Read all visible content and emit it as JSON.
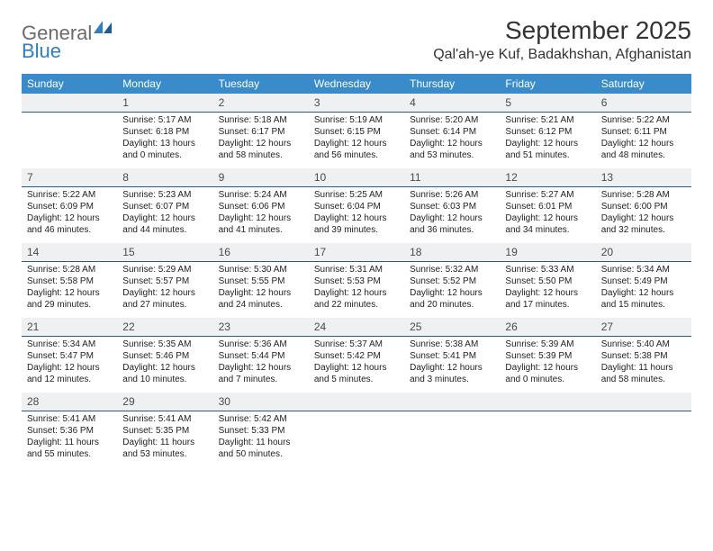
{
  "logo": {
    "part1": "General",
    "part2": "Blue"
  },
  "title": "September 2025",
  "location": "Qal'ah-ye Kuf, Badakhshan, Afghanistan",
  "colors": {
    "header_bg": "#3a8bc9",
    "header_text": "#ffffff",
    "dayrow_bg": "#eef0f1",
    "dayrow_border": "#2b5a7e",
    "logo_gray": "#6b6b6b",
    "logo_blue": "#2f7fbe"
  },
  "weekdays": [
    "Sunday",
    "Monday",
    "Tuesday",
    "Wednesday",
    "Thursday",
    "Friday",
    "Saturday"
  ],
  "weeks": [
    [
      {
        "day": "",
        "sunrise": "",
        "sunset": "",
        "daylight": ""
      },
      {
        "day": "1",
        "sunrise": "Sunrise: 5:17 AM",
        "sunset": "Sunset: 6:18 PM",
        "daylight": "Daylight: 13 hours and 0 minutes."
      },
      {
        "day": "2",
        "sunrise": "Sunrise: 5:18 AM",
        "sunset": "Sunset: 6:17 PM",
        "daylight": "Daylight: 12 hours and 58 minutes."
      },
      {
        "day": "3",
        "sunrise": "Sunrise: 5:19 AM",
        "sunset": "Sunset: 6:15 PM",
        "daylight": "Daylight: 12 hours and 56 minutes."
      },
      {
        "day": "4",
        "sunrise": "Sunrise: 5:20 AM",
        "sunset": "Sunset: 6:14 PM",
        "daylight": "Daylight: 12 hours and 53 minutes."
      },
      {
        "day": "5",
        "sunrise": "Sunrise: 5:21 AM",
        "sunset": "Sunset: 6:12 PM",
        "daylight": "Daylight: 12 hours and 51 minutes."
      },
      {
        "day": "6",
        "sunrise": "Sunrise: 5:22 AM",
        "sunset": "Sunset: 6:11 PM",
        "daylight": "Daylight: 12 hours and 48 minutes."
      }
    ],
    [
      {
        "day": "7",
        "sunrise": "Sunrise: 5:22 AM",
        "sunset": "Sunset: 6:09 PM",
        "daylight": "Daylight: 12 hours and 46 minutes."
      },
      {
        "day": "8",
        "sunrise": "Sunrise: 5:23 AM",
        "sunset": "Sunset: 6:07 PM",
        "daylight": "Daylight: 12 hours and 44 minutes."
      },
      {
        "day": "9",
        "sunrise": "Sunrise: 5:24 AM",
        "sunset": "Sunset: 6:06 PM",
        "daylight": "Daylight: 12 hours and 41 minutes."
      },
      {
        "day": "10",
        "sunrise": "Sunrise: 5:25 AM",
        "sunset": "Sunset: 6:04 PM",
        "daylight": "Daylight: 12 hours and 39 minutes."
      },
      {
        "day": "11",
        "sunrise": "Sunrise: 5:26 AM",
        "sunset": "Sunset: 6:03 PM",
        "daylight": "Daylight: 12 hours and 36 minutes."
      },
      {
        "day": "12",
        "sunrise": "Sunrise: 5:27 AM",
        "sunset": "Sunset: 6:01 PM",
        "daylight": "Daylight: 12 hours and 34 minutes."
      },
      {
        "day": "13",
        "sunrise": "Sunrise: 5:28 AM",
        "sunset": "Sunset: 6:00 PM",
        "daylight": "Daylight: 12 hours and 32 minutes."
      }
    ],
    [
      {
        "day": "14",
        "sunrise": "Sunrise: 5:28 AM",
        "sunset": "Sunset: 5:58 PM",
        "daylight": "Daylight: 12 hours and 29 minutes."
      },
      {
        "day": "15",
        "sunrise": "Sunrise: 5:29 AM",
        "sunset": "Sunset: 5:57 PM",
        "daylight": "Daylight: 12 hours and 27 minutes."
      },
      {
        "day": "16",
        "sunrise": "Sunrise: 5:30 AM",
        "sunset": "Sunset: 5:55 PM",
        "daylight": "Daylight: 12 hours and 24 minutes."
      },
      {
        "day": "17",
        "sunrise": "Sunrise: 5:31 AM",
        "sunset": "Sunset: 5:53 PM",
        "daylight": "Daylight: 12 hours and 22 minutes."
      },
      {
        "day": "18",
        "sunrise": "Sunrise: 5:32 AM",
        "sunset": "Sunset: 5:52 PM",
        "daylight": "Daylight: 12 hours and 20 minutes."
      },
      {
        "day": "19",
        "sunrise": "Sunrise: 5:33 AM",
        "sunset": "Sunset: 5:50 PM",
        "daylight": "Daylight: 12 hours and 17 minutes."
      },
      {
        "day": "20",
        "sunrise": "Sunrise: 5:34 AM",
        "sunset": "Sunset: 5:49 PM",
        "daylight": "Daylight: 12 hours and 15 minutes."
      }
    ],
    [
      {
        "day": "21",
        "sunrise": "Sunrise: 5:34 AM",
        "sunset": "Sunset: 5:47 PM",
        "daylight": "Daylight: 12 hours and 12 minutes."
      },
      {
        "day": "22",
        "sunrise": "Sunrise: 5:35 AM",
        "sunset": "Sunset: 5:46 PM",
        "daylight": "Daylight: 12 hours and 10 minutes."
      },
      {
        "day": "23",
        "sunrise": "Sunrise: 5:36 AM",
        "sunset": "Sunset: 5:44 PM",
        "daylight": "Daylight: 12 hours and 7 minutes."
      },
      {
        "day": "24",
        "sunrise": "Sunrise: 5:37 AM",
        "sunset": "Sunset: 5:42 PM",
        "daylight": "Daylight: 12 hours and 5 minutes."
      },
      {
        "day": "25",
        "sunrise": "Sunrise: 5:38 AM",
        "sunset": "Sunset: 5:41 PM",
        "daylight": "Daylight: 12 hours and 3 minutes."
      },
      {
        "day": "26",
        "sunrise": "Sunrise: 5:39 AM",
        "sunset": "Sunset: 5:39 PM",
        "daylight": "Daylight: 12 hours and 0 minutes."
      },
      {
        "day": "27",
        "sunrise": "Sunrise: 5:40 AM",
        "sunset": "Sunset: 5:38 PM",
        "daylight": "Daylight: 11 hours and 58 minutes."
      }
    ],
    [
      {
        "day": "28",
        "sunrise": "Sunrise: 5:41 AM",
        "sunset": "Sunset: 5:36 PM",
        "daylight": "Daylight: 11 hours and 55 minutes."
      },
      {
        "day": "29",
        "sunrise": "Sunrise: 5:41 AM",
        "sunset": "Sunset: 5:35 PM",
        "daylight": "Daylight: 11 hours and 53 minutes."
      },
      {
        "day": "30",
        "sunrise": "Sunrise: 5:42 AM",
        "sunset": "Sunset: 5:33 PM",
        "daylight": "Daylight: 11 hours and 50 minutes."
      },
      {
        "day": "",
        "sunrise": "",
        "sunset": "",
        "daylight": ""
      },
      {
        "day": "",
        "sunrise": "",
        "sunset": "",
        "daylight": ""
      },
      {
        "day": "",
        "sunrise": "",
        "sunset": "",
        "daylight": ""
      },
      {
        "day": "",
        "sunrise": "",
        "sunset": "",
        "daylight": ""
      }
    ]
  ]
}
